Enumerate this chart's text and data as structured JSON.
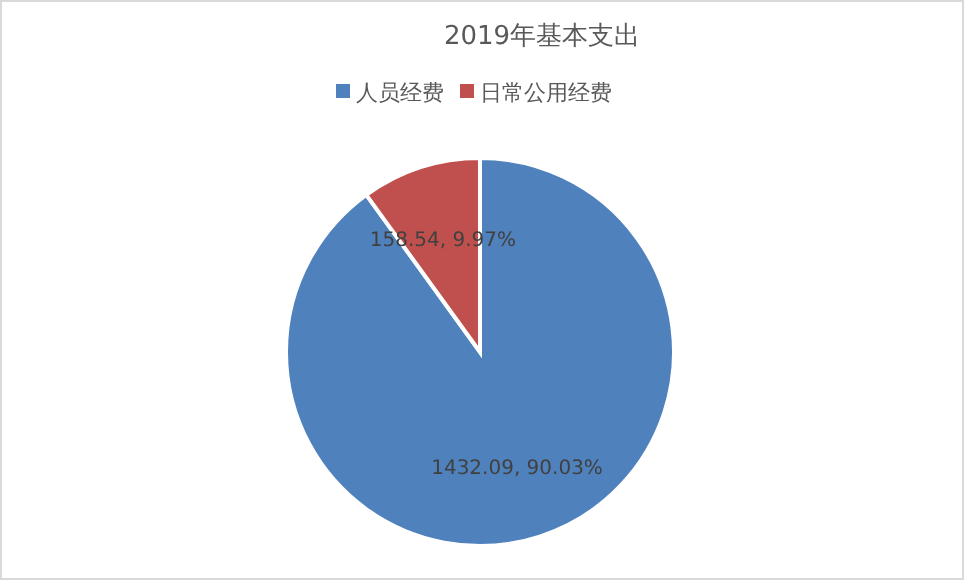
{
  "chart_data": {
    "type": "pie",
    "title": "2019年基本支出",
    "categories": [
      "人员经费",
      "日常公用经费"
    ],
    "values": [
      1432.09,
      158.54
    ],
    "colors": [
      "#4f81bd",
      "#c0504d"
    ],
    "value_labels": [
      "1432.09, 90.03%",
      "158.54, 9.97%"
    ],
    "legend": "top"
  }
}
